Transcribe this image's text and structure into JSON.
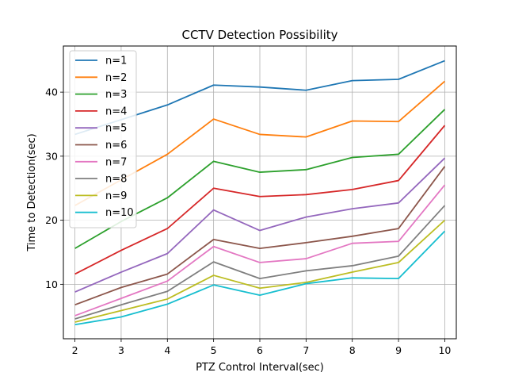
{
  "chart_data": {
    "type": "line",
    "title": "CCTV Detection Possibility",
    "xlabel": "PTZ Control Interval(sec)",
    "ylabel": "Time to Detection(sec)",
    "x": [
      2,
      3,
      4,
      5,
      6,
      7,
      8,
      9,
      10
    ],
    "xlim": [
      1.75,
      10.25
    ],
    "ylim": [
      1.5,
      47.2
    ],
    "xticks": [
      2,
      3,
      4,
      5,
      6,
      7,
      8,
      9,
      10
    ],
    "yticks": [
      10,
      20,
      30,
      40
    ],
    "grid": true,
    "legend_position": "top-left",
    "series": [
      {
        "name": "n=1",
        "color": "#1f77b4",
        "values": [
          33.4,
          35.7,
          38.0,
          41.1,
          40.8,
          40.3,
          41.8,
          42.0,
          44.9
        ]
      },
      {
        "name": "n=2",
        "color": "#ff7f0e",
        "values": [
          22.3,
          26.3,
          30.3,
          35.8,
          33.4,
          33.0,
          35.5,
          35.4,
          41.7
        ]
      },
      {
        "name": "n=3",
        "color": "#2ca02c",
        "values": [
          15.6,
          19.8,
          23.5,
          29.2,
          27.5,
          27.9,
          29.8,
          30.3,
          37.3
        ]
      },
      {
        "name": "n=4",
        "color": "#d62728",
        "values": [
          11.6,
          15.3,
          18.7,
          25.0,
          23.7,
          24.0,
          24.8,
          26.2,
          34.8
        ]
      },
      {
        "name": "n=5",
        "color": "#9467bd",
        "values": [
          8.8,
          11.9,
          14.8,
          21.6,
          18.4,
          20.5,
          21.8,
          22.7,
          29.7
        ]
      },
      {
        "name": "n=6",
        "color": "#8c564b",
        "values": [
          6.8,
          9.5,
          11.6,
          17.0,
          15.6,
          16.5,
          17.5,
          18.7,
          28.4
        ]
      },
      {
        "name": "n=7",
        "color": "#e377c2",
        "values": [
          5.1,
          7.8,
          10.5,
          15.9,
          13.4,
          14.0,
          16.4,
          16.7,
          25.5
        ]
      },
      {
        "name": "n=8",
        "color": "#7f7f7f",
        "values": [
          4.6,
          6.8,
          8.9,
          13.5,
          10.9,
          12.1,
          12.9,
          14.4,
          22.3
        ]
      },
      {
        "name": "n=9",
        "color": "#bcbd22",
        "values": [
          4.1,
          5.9,
          7.7,
          11.4,
          9.4,
          10.3,
          11.9,
          13.4,
          20.0
        ]
      },
      {
        "name": "n=10",
        "color": "#17becf",
        "values": [
          3.7,
          4.9,
          6.9,
          9.9,
          8.3,
          10.1,
          11.0,
          10.9,
          18.3
        ]
      }
    ]
  }
}
